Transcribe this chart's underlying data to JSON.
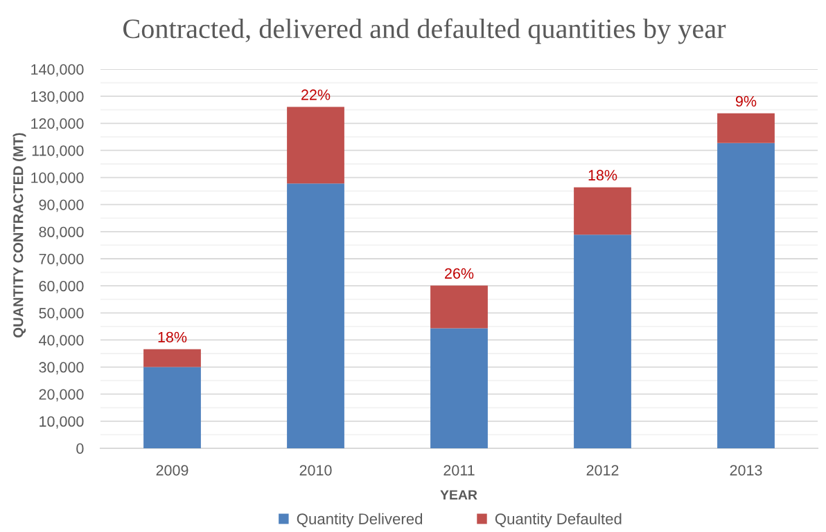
{
  "chart_data": {
    "type": "bar",
    "title": "Contracted, delivered and defaulted quantities by year",
    "xlabel": "YEAR",
    "ylabel": "QUANTITY CONTRACTED (MT)",
    "categories": [
      "2009",
      "2010",
      "2011",
      "2012",
      "2013"
    ],
    "stacked": true,
    "series": [
      {
        "name": "Quantity Delivered",
        "color": "#4f81bd",
        "values": [
          30000,
          97800,
          44300,
          78900,
          112700
        ]
      },
      {
        "name": "Quantity Defaulted",
        "color": "#c0504d",
        "values": [
          6600,
          28300,
          15800,
          17500,
          11000
        ]
      }
    ],
    "annotations": [
      {
        "text": "18%",
        "x": "2009",
        "y": 36600
      },
      {
        "text": "22%",
        "x": "2010",
        "y": 126100
      },
      {
        "text": "26%",
        "x": "2011",
        "y": 60100
      },
      {
        "text": "18%",
        "x": "2012",
        "y": 96400
      },
      {
        "text": "9%",
        "x": "2013",
        "y": 123700
      }
    ],
    "ylim": [
      0,
      140000
    ],
    "yticks": [
      0,
      {
        "value": 5000,
        "label": null
      },
      {
        "value": 10000,
        "label": "10,000"
      },
      {
        "value": 15000,
        "label": null
      },
      {
        "value": 20000,
        "label": "20,000"
      },
      {
        "value": 25000,
        "label": null
      },
      {
        "value": 30000,
        "label": "30,000"
      },
      {
        "value": 35000,
        "label": null
      },
      {
        "value": 40000,
        "label": "40,000"
      },
      {
        "value": 45000,
        "label": null
      },
      {
        "value": 50000,
        "label": "50,000"
      },
      {
        "value": 55000,
        "label": null
      },
      {
        "value": 60000,
        "label": "60,000"
      },
      {
        "value": 65000,
        "label": null
      },
      {
        "value": 70000,
        "label": "70,000"
      },
      {
        "value": 75000,
        "label": null
      },
      {
        "value": 80000,
        "label": "80,000"
      },
      {
        "value": 85000,
        "label": null
      },
      {
        "value": 90000,
        "label": "90,000"
      },
      {
        "value": 95000,
        "label": null
      },
      {
        "value": 100000,
        "label": "100,000"
      },
      {
        "value": 105000,
        "label": null
      },
      {
        "value": 110000,
        "label": "110,000"
      },
      {
        "value": 115000,
        "label": null
      },
      {
        "value": 120000,
        "label": "120,000"
      },
      {
        "value": 125000,
        "label": null
      },
      {
        "value": 130000,
        "label": "130,000"
      },
      {
        "value": 135000,
        "label": null
      },
      {
        "value": 140000,
        "label": "140,000"
      }
    ],
    "grid": "y",
    "legend": "bottom"
  }
}
